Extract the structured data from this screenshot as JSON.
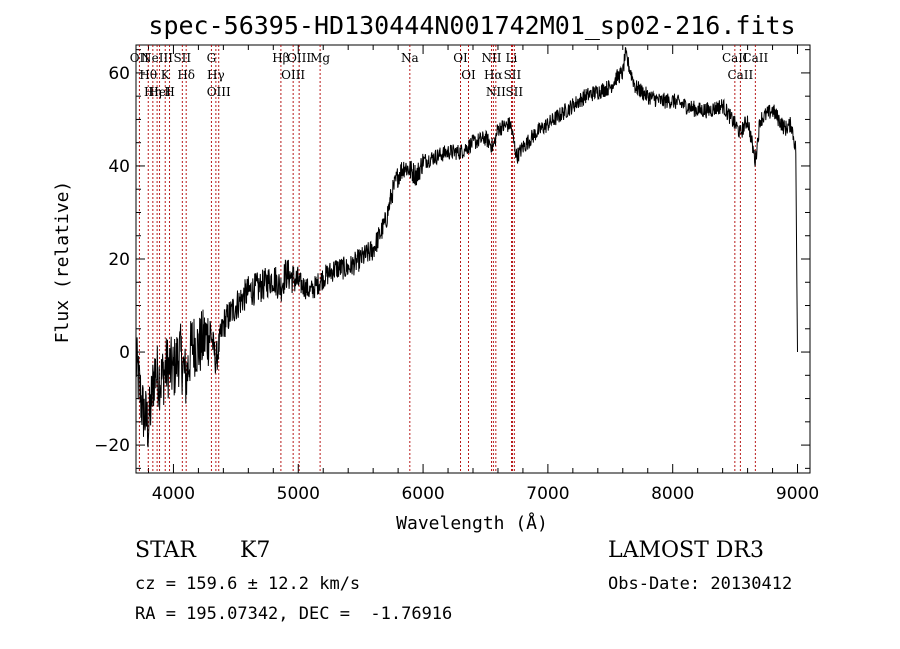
{
  "chart_data": {
    "type": "line",
    "title": "spec-56395-HD130444N001742M01_sp02-216.fits",
    "xlabel": "Wavelength (Å)",
    "ylabel": "Flux (relative)",
    "xlim": [
      3700,
      9100
    ],
    "ylim": [
      -26,
      66
    ],
    "xticks": [
      4000,
      5000,
      6000,
      7000,
      8000,
      9000
    ],
    "yticks": [
      -20,
      0,
      20,
      40,
      60
    ],
    "series": [
      {
        "name": "flux",
        "x": [
          3700,
          3750,
          3800,
          3850,
          3900,
          3950,
          4000,
          4050,
          4100,
          4150,
          4200,
          4250,
          4300,
          4340,
          4400,
          4450,
          4500,
          4600,
          4700,
          4800,
          4861,
          4900,
          4950,
          5000,
          5100,
          5200,
          5300,
          5400,
          5500,
          5600,
          5650,
          5700,
          5750,
          5800,
          5850,
          5900,
          5950,
          6000,
          6100,
          6200,
          6300,
          6400,
          6500,
          6563,
          6600,
          6700,
          6750,
          6800,
          6900,
          7000,
          7100,
          7200,
          7300,
          7400,
          7500,
          7550,
          7600,
          7620,
          7700,
          7800,
          7900,
          8000,
          8100,
          8200,
          8300,
          8400,
          8498,
          8542,
          8600,
          8662,
          8700,
          8800,
          8850,
          8900,
          8950,
          8990,
          8995,
          9000
        ],
        "y": [
          -2,
          -12,
          -16,
          -4,
          -6,
          -3,
          -4,
          0,
          -6,
          2,
          1,
          3,
          4,
          -2,
          6,
          8,
          10,
          13,
          14,
          16,
          14,
          17,
          16,
          15,
          13,
          16,
          18,
          18,
          20,
          22,
          25,
          28,
          34,
          38,
          40,
          39,
          38,
          41,
          42,
          43,
          43,
          45,
          46,
          44,
          48,
          49,
          42,
          44,
          47,
          49,
          51,
          53,
          55,
          56,
          57,
          59,
          60,
          64,
          57,
          55,
          54,
          54,
          53,
          52,
          52,
          53,
          49,
          47,
          50,
          41,
          50,
          52,
          50,
          48,
          49,
          43,
          14,
          0
        ]
      }
    ],
    "lines": [
      {
        "wavelength": 3727,
        "label": "OII"
      },
      {
        "wavelength": 3798,
        "label": "Hθ"
      },
      {
        "wavelength": 3835,
        "label": "Hη"
      },
      {
        "wavelength": 3869,
        "label": "NeIII"
      },
      {
        "wavelength": 3889,
        "label": "HeI"
      },
      {
        "wavelength": 3934,
        "label": "K"
      },
      {
        "wavelength": 3969,
        "label": "H"
      },
      {
        "wavelength": 4071,
        "label": "SII"
      },
      {
        "wavelength": 4102,
        "label": "Hδ"
      },
      {
        "wavelength": 4304,
        "label": "G"
      },
      {
        "wavelength": 4340,
        "label": "Hγ"
      },
      {
        "wavelength": 4363,
        "label": "OIII"
      },
      {
        "wavelength": 4861,
        "label": "Hβ"
      },
      {
        "wavelength": 4959,
        "label": "OIII"
      },
      {
        "wavelength": 5007,
        "label": "OIII"
      },
      {
        "wavelength": 5175,
        "label": "Mg"
      },
      {
        "wavelength": 5894,
        "label": "Na"
      },
      {
        "wavelength": 6300,
        "label": "OI"
      },
      {
        "wavelength": 6364,
        "label": "OI"
      },
      {
        "wavelength": 6548,
        "label": "NII"
      },
      {
        "wavelength": 6563,
        "label": "Hα"
      },
      {
        "wavelength": 6583,
        "label": "NII"
      },
      {
        "wavelength": 6708,
        "label": "Li"
      },
      {
        "wavelength": 6716,
        "label": "SII"
      },
      {
        "wavelength": 6731,
        "label": "SII"
      },
      {
        "wavelength": 8498,
        "label": "CaII"
      },
      {
        "wavelength": 8542,
        "label": "CaII"
      },
      {
        "wavelength": 8662,
        "label": "CaII"
      }
    ]
  },
  "footer": {
    "object_class": "STAR",
    "subclass": "K7",
    "survey": "LAMOST DR3",
    "cz": "cz = 159.6 ± 12.2 km/s",
    "obs_date": "Obs-Date: 20130412",
    "coords": "RA = 195.07342, DEC =  -1.76916"
  }
}
